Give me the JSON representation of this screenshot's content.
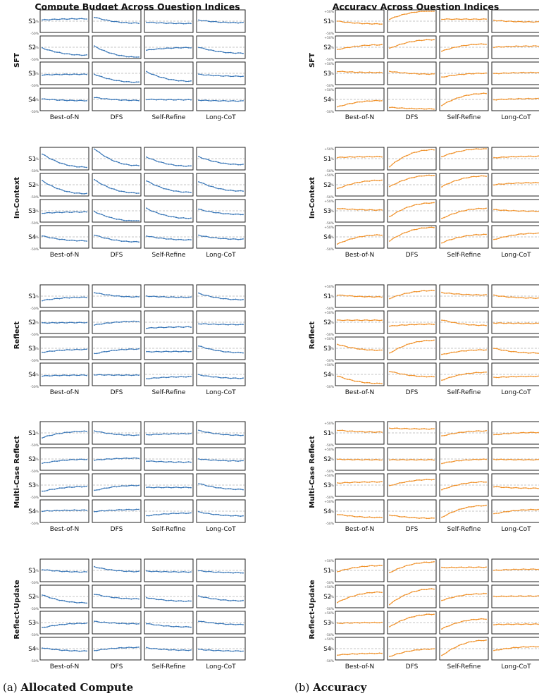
{
  "panels": [
    {
      "title": "Compute Budget Across Question Indices",
      "caption_prefix": "(a) ",
      "caption_bold": "Allocated Compute",
      "color": "#3b78b8",
      "tick_labels": {
        "top": "",
        "zero": "0%",
        "bottom": "-50%"
      }
    },
    {
      "title": "Accuracy Across Question Indices",
      "caption_prefix": "(b) ",
      "caption_bold": "Accuracy",
      "color": "#f0922b",
      "tick_labels": {
        "top": "+50%",
        "zero": "0%",
        "bottom": "-50%"
      }
    }
  ],
  "groups": [
    "SFT",
    "In-Context",
    "Reflect",
    "Multi-Case Reflect",
    "Reflect-Update"
  ],
  "rows": [
    "S1",
    "S2",
    "S3",
    "S4"
  ],
  "columns": [
    "Best-of-N",
    "DFS",
    "Self-Refine",
    "Long-CoT"
  ],
  "chart_data": [
    {
      "type": "line",
      "title": "Compute Budget Across Question Indices",
      "grid": "4 rows (S1-S4) x 4 columns (methods) per group, 5 groups stacked",
      "ylim": [
        -50,
        50
      ],
      "yticks": [
        "0%",
        "-50%"
      ],
      "x": "question index (unlabeled)",
      "curves": {
        "SFT": [
          [
            [
              6,
              12
            ],
            [
              20,
              -10
            ],
            [
              -5,
              -12
            ],
            [
              5,
              -8
            ]
          ],
          [
            [
              -4,
              -40
            ],
            [
              5,
              -50
            ],
            [
              -15,
              -2
            ],
            [
              0,
              -30
            ]
          ],
          [
            [
              -8,
              -5
            ],
            [
              -5,
              -45
            ],
            [
              8,
              -40
            ],
            [
              -5,
              -15
            ]
          ],
          [
            [
              2,
              -6
            ],
            [
              10,
              -5
            ],
            [
              0,
              -2
            ],
            [
              -4,
              -8
            ]
          ]
        ],
        "In-Context": [
          [
            [
              24,
              -43
            ],
            [
              50,
              -35
            ],
            [
              8,
              -38
            ],
            [
              10,
              -30
            ]
          ],
          [
            [
              20,
              -45
            ],
            [
              25,
              -42
            ],
            [
              20,
              -38
            ],
            [
              16,
              -32
            ]
          ],
          [
            [
              -12,
              -6
            ],
            [
              -4,
              -52
            ],
            [
              12,
              -38
            ],
            [
              8,
              -18
            ]
          ],
          [
            [
              5,
              -20
            ],
            [
              10,
              -25
            ],
            [
              5,
              -15
            ],
            [
              8,
              -12
            ]
          ]
        ],
        "Reflect": [
          [
            [
              -22,
              -6
            ],
            [
              18,
              -4
            ],
            [
              0,
              -6
            ],
            [
              14,
              -18
            ]
          ],
          [
            [
              -4,
              -2
            ],
            [
              -14,
              4
            ],
            [
              -30,
              -24
            ],
            [
              -8,
              -12
            ]
          ],
          [
            [
              -20,
              -6
            ],
            [
              -28,
              -4
            ],
            [
              -18,
              -16
            ],
            [
              12,
              -22
            ]
          ],
          [
            [
              -8,
              -4
            ],
            [
              -2,
              -4
            ],
            [
              -22,
              -12
            ],
            [
              -2,
              -20
            ]
          ]
        ],
        "Multi-Case Reflect": [
          [
            [
              -24,
              8
            ],
            [
              10,
              -12
            ],
            [
              -10,
              -4
            ],
            [
              12,
              -12
            ]
          ],
          [
            [
              -22,
              -2
            ],
            [
              -6,
              4
            ],
            [
              -10,
              -16
            ],
            [
              0,
              -10
            ]
          ],
          [
            [
              -32,
              -8
            ],
            [
              -28,
              -2
            ],
            [
              -12,
              -12
            ],
            [
              8,
              -22
            ]
          ],
          [
            [
              0,
              5
            ],
            [
              -2,
              8
            ],
            [
              -24,
              -10
            ],
            [
              -4,
              -24
            ]
          ]
        ],
        "Reflect-Update": [
          [
            [
              4,
              -8
            ],
            [
              18,
              -6
            ],
            [
              -4,
              -8
            ],
            [
              -2,
              -12
            ]
          ],
          [
            [
              8,
              -32
            ],
            [
              12,
              -12
            ],
            [
              -6,
              -24
            ],
            [
              2,
              -22
            ]
          ],
          [
            [
              -26,
              -4
            ],
            [
              6,
              -6
            ],
            [
              -5,
              -22
            ],
            [
              8,
              -10
            ]
          ],
          [
            [
              4,
              -12
            ],
            [
              -10,
              6
            ],
            [
              4,
              -8
            ],
            [
              -4,
              -12
            ]
          ]
        ]
      }
    },
    {
      "type": "line",
      "title": "Accuracy Across Question Indices",
      "grid": "4 rows (S1-S4) x 4 columns (methods) per group, 5 groups stacked",
      "ylim": [
        -50,
        50
      ],
      "yticks": [
        "+50%",
        "0%",
        "-50%"
      ],
      "x": "question index (unlabeled)",
      "curves": {
        "SFT": [
          [
            [
              0,
              -14
            ],
            [
              10,
              52
            ],
            [
              10,
              10
            ],
            [
              4,
              -4
            ]
          ],
          [
            [
              -12,
              12
            ],
            [
              -6,
              38
            ],
            [
              -20,
              16
            ],
            [
              0,
              6
            ]
          ],
          [
            [
              10,
              4
            ],
            [
              10,
              -4
            ],
            [
              -20,
              0
            ],
            [
              -2,
              4
            ]
          ],
          [
            [
              -38,
              -6
            ],
            [
              -40,
              -48
            ],
            [
              -30,
              30
            ],
            [
              -2,
              4
            ]
          ]
        ],
        "In-Context": [
          [
            [
              6,
              10
            ],
            [
              -40,
              45
            ],
            [
              10,
              50
            ],
            [
              4,
              12
            ]
          ],
          [
            [
              -20,
              22
            ],
            [
              -10,
              48
            ],
            [
              -10,
              44
            ],
            [
              0,
              10
            ]
          ],
          [
            [
              12,
              4
            ],
            [
              -30,
              40
            ],
            [
              -40,
              12
            ],
            [
              6,
              -2
            ]
          ],
          [
            [
              -36,
              10
            ],
            [
              -20,
              48
            ],
            [
              -30,
              12
            ],
            [
              -14,
              18
            ]
          ]
        ],
        "Reflect": [
          [
            [
              6,
              -4
            ],
            [
              -12,
              28
            ],
            [
              18,
              6
            ],
            [
              4,
              -10
            ]
          ],
          [
            [
              10,
              10
            ],
            [
              -20,
              -10
            ],
            [
              12,
              -16
            ],
            [
              -4,
              -6
            ]
          ],
          [
            [
              20,
              -10
            ],
            [
              -25,
              40
            ],
            [
              -32,
              -8
            ],
            [
              0,
              -24
            ]
          ],
          [
            [
              -8,
              -46
            ],
            [
              16,
              -12
            ],
            [
              -30,
              10
            ],
            [
              -16,
              -10
            ]
          ]
        ],
        "Multi-Case Reflect": [
          [
            [
              14,
              4
            ],
            [
              24,
              20
            ],
            [
              -16,
              10
            ],
            [
              -10,
              2
            ]
          ],
          [
            [
              -2,
              -4
            ],
            [
              -4,
              -4
            ],
            [
              -22,
              -2
            ],
            [
              -2,
              -4
            ]
          ],
          [
            [
              10,
              16
            ],
            [
              -4,
              28
            ],
            [
              -24,
              16
            ],
            [
              -8,
              -16
            ]
          ],
          [
            [
              -16,
              -32
            ],
            [
              -20,
              -36
            ],
            [
              -32,
              28
            ],
            [
              -14,
              8
            ]
          ]
        ],
        "Reflect-Update": [
          [
            [
              -6,
              24
            ],
            [
              -12,
              42
            ],
            [
              14,
              16
            ],
            [
              0,
              6
            ]
          ],
          [
            [
              -30,
              22
            ],
            [
              -40,
              38
            ],
            [
              -20,
              14
            ],
            [
              0,
              2
            ]
          ],
          [
            [
              -4,
              0
            ],
            [
              -22,
              42
            ],
            [
              -32,
              18
            ],
            [
              -10,
              -8
            ]
          ],
          [
            [
              -32,
              -24
            ],
            [
              -40,
              -2
            ],
            [
              -36,
              42
            ],
            [
              -10,
              10
            ]
          ]
        ]
      }
    }
  ]
}
